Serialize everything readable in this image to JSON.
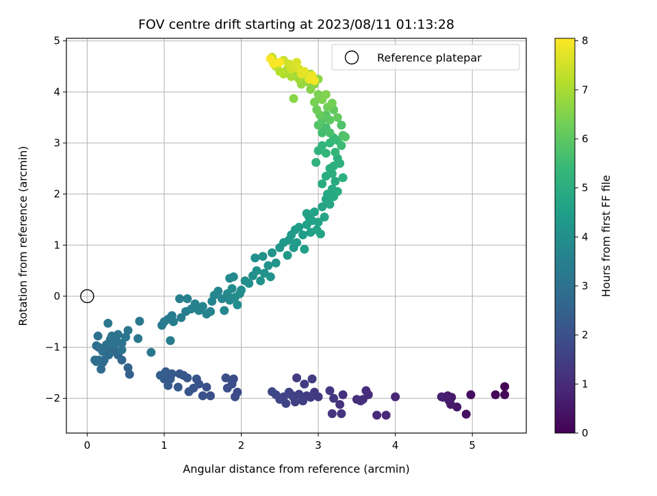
{
  "chart_data": {
    "type": "scatter",
    "title": "FOV centre drift starting at 2023/08/11 01:13:28",
    "xlabel": "Angular distance from reference (arcmin)",
    "ylabel": "Rotation from reference (arcmin)",
    "xlim": [
      -0.27,
      5.7
    ],
    "ylim": [
      -2.68,
      5.05
    ],
    "xticks": [
      0,
      1,
      2,
      3,
      4,
      5
    ],
    "yticks": [
      -2,
      -1,
      0,
      1,
      2,
      3,
      4,
      5
    ],
    "grid": true,
    "legend": {
      "position": "top-right",
      "entries": [
        "Reference platepar"
      ]
    },
    "reference_point": {
      "x": 0,
      "y": 0
    },
    "colorbar": {
      "label": "Hours from first FF file",
      "range": [
        0,
        8.05
      ],
      "ticks": [
        0,
        1,
        2,
        3,
        4,
        5,
        6,
        7,
        8
      ],
      "colormap": "viridis",
      "colormap_stops": [
        "#440154",
        "#482878",
        "#3e4989",
        "#31688e",
        "#26828e",
        "#1f9e89",
        "#35b779",
        "#6ece58",
        "#b5de2b",
        "#fde725"
      ]
    },
    "series_points": [
      [
        5.42,
        -1.77,
        0.05
      ],
      [
        5.42,
        -1.93,
        0.1
      ],
      [
        5.3,
        -1.93,
        0.15
      ],
      [
        4.98,
        -1.93,
        0.3
      ],
      [
        4.92,
        -2.31,
        0.35
      ],
      [
        4.8,
        -2.17,
        0.45
      ],
      [
        4.73,
        -1.98,
        0.55
      ],
      [
        4.7,
        -2.05,
        0.6
      ],
      [
        4.72,
        -2.12,
        0.6
      ],
      [
        4.62,
        -1.98,
        0.7
      ],
      [
        4.6,
        -1.97,
        0.75
      ],
      [
        4.68,
        -1.95,
        0.65
      ],
      [
        4.0,
        -1.97,
        0.85
      ],
      [
        3.88,
        -2.33,
        0.9
      ],
      [
        3.76,
        -2.33,
        0.95
      ],
      [
        3.65,
        -1.93,
        1.0
      ],
      [
        3.62,
        -1.85,
        1.05
      ],
      [
        3.58,
        -2.02,
        1.05
      ],
      [
        3.55,
        -2.05,
        1.1
      ],
      [
        3.5,
        -2.02,
        1.1
      ],
      [
        3.32,
        -1.93,
        1.15
      ],
      [
        3.3,
        -2.3,
        1.2
      ],
      [
        3.28,
        -2.12,
        1.2
      ],
      [
        3.18,
        -2.3,
        1.25
      ],
      [
        3.2,
        -2.0,
        1.25
      ],
      [
        3.15,
        -1.85,
        1.3
      ],
      [
        3.0,
        -1.97,
        1.35
      ],
      [
        2.95,
        -1.88,
        1.35
      ],
      [
        2.92,
        -1.62,
        1.4
      ],
      [
        2.9,
        -1.98,
        1.4
      ],
      [
        2.85,
        -1.95,
        1.45
      ],
      [
        2.82,
        -1.72,
        1.45
      ],
      [
        2.8,
        -2.05,
        1.5
      ],
      [
        2.75,
        -1.92,
        1.5
      ],
      [
        2.7,
        -2.07,
        1.55
      ],
      [
        2.68,
        -1.98,
        1.55
      ],
      [
        2.65,
        -1.93,
        1.6
      ],
      [
        2.62,
        -1.88,
        1.6
      ],
      [
        2.58,
        -2.1,
        1.65
      ],
      [
        2.55,
        -1.97,
        1.65
      ],
      [
        2.5,
        -2.02,
        1.7
      ],
      [
        2.45,
        -1.93,
        1.7
      ],
      [
        2.4,
        -1.87,
        1.75
      ],
      [
        2.72,
        -1.6,
        1.42
      ],
      [
        1.95,
        -1.88,
        1.8
      ],
      [
        1.92,
        -1.97,
        1.85
      ],
      [
        1.9,
        -1.62,
        1.85
      ],
      [
        1.88,
        -1.72,
        1.9
      ],
      [
        1.82,
        -1.8,
        1.9
      ],
      [
        1.8,
        -1.6,
        1.95
      ],
      [
        1.6,
        -1.95,
        2.0
      ],
      [
        1.55,
        -1.78,
        2.0
      ],
      [
        1.5,
        -1.95,
        2.05
      ],
      [
        1.45,
        -1.72,
        2.05
      ],
      [
        1.42,
        -1.62,
        2.1
      ],
      [
        1.38,
        -1.8,
        2.1
      ],
      [
        1.32,
        -1.87,
        2.15
      ],
      [
        1.3,
        -1.6,
        2.15
      ],
      [
        1.25,
        -1.55,
        2.2
      ],
      [
        1.2,
        -1.52,
        2.2
      ],
      [
        1.18,
        -1.78,
        2.25
      ],
      [
        1.1,
        -1.52,
        2.25
      ],
      [
        1.08,
        -1.62,
        2.3
      ],
      [
        1.05,
        -1.75,
        2.3
      ],
      [
        1.02,
        -1.48,
        2.35
      ],
      [
        1.0,
        -1.62,
        2.35
      ],
      [
        0.95,
        -1.55,
        2.4
      ],
      [
        0.55,
        -1.53,
        2.5
      ],
      [
        0.53,
        -1.4,
        2.55
      ],
      [
        0.45,
        -1.25,
        2.6
      ],
      [
        0.4,
        -1.15,
        2.65
      ],
      [
        0.35,
        -1.05,
        2.7
      ],
      [
        0.3,
        -1.1,
        2.7
      ],
      [
        0.25,
        -1.05,
        2.75
      ],
      [
        0.22,
        -1.25,
        2.75
      ],
      [
        0.2,
        -1.3,
        2.8
      ],
      [
        0.18,
        -1.43,
        2.8
      ],
      [
        0.15,
        -1.25,
        2.85
      ],
      [
        0.12,
        -1.28,
        2.85
      ],
      [
        0.1,
        -1.25,
        2.9
      ],
      [
        0.12,
        -0.97,
        2.9
      ],
      [
        0.15,
        -1.0,
        2.95
      ],
      [
        0.2,
        -1.08,
        2.95
      ],
      [
        0.25,
        -0.95,
        3.0
      ],
      [
        0.3,
        -0.85,
        3.0
      ],
      [
        0.32,
        -0.78,
        3.05
      ],
      [
        0.38,
        -0.88,
        3.05
      ],
      [
        0.4,
        -0.75,
        3.1
      ],
      [
        0.45,
        -0.92,
        3.1
      ],
      [
        0.5,
        -0.8,
        3.15
      ],
      [
        0.53,
        -0.67,
        3.15
      ],
      [
        0.45,
        -1.05,
        3.05
      ],
      [
        0.35,
        -0.95,
        2.98
      ],
      [
        0.28,
        -1.15,
        2.85
      ],
      [
        0.14,
        -0.78,
        2.95
      ],
      [
        0.27,
        -0.53,
        3.2
      ],
      [
        0.66,
        -0.83,
        3.2
      ],
      [
        0.68,
        -0.49,
        3.25
      ],
      [
        0.83,
        -1.1,
        3.25
      ],
      [
        0.97,
        -0.57,
        3.3
      ],
      [
        1.0,
        -0.5,
        3.3
      ],
      [
        1.05,
        -0.45,
        3.35
      ],
      [
        1.1,
        -0.38,
        3.35
      ],
      [
        1.12,
        -0.5,
        3.4
      ],
      [
        1.08,
        -0.87,
        3.38
      ],
      [
        1.2,
        -0.05,
        3.4
      ],
      [
        1.22,
        -0.42,
        3.45
      ],
      [
        1.28,
        -0.3,
        3.45
      ],
      [
        1.3,
        -0.05,
        3.5
      ],
      [
        1.35,
        -0.25,
        3.5
      ],
      [
        1.4,
        -0.15,
        3.55
      ],
      [
        1.45,
        -0.28,
        3.55
      ],
      [
        1.5,
        -0.2,
        3.6
      ],
      [
        1.55,
        -0.35,
        3.6
      ],
      [
        1.6,
        -0.3,
        3.65
      ],
      [
        1.62,
        -0.1,
        3.65
      ],
      [
        1.65,
        0.02,
        3.7
      ],
      [
        1.7,
        0.1,
        3.7
      ],
      [
        1.75,
        -0.05,
        3.75
      ],
      [
        1.78,
        -0.28,
        3.75
      ],
      [
        1.82,
        0.05,
        3.8
      ],
      [
        1.85,
        -0.08,
        3.8
      ],
      [
        1.88,
        0.15,
        3.85
      ],
      [
        1.92,
        -0.02,
        3.85
      ],
      [
        1.95,
        -0.17,
        3.9
      ],
      [
        1.98,
        0.05,
        3.9
      ],
      [
        2.0,
        0.12,
        3.95
      ],
      [
        2.05,
        0.3,
        3.95
      ],
      [
        2.1,
        0.25,
        4.0
      ],
      [
        2.15,
        0.4,
        4.0
      ],
      [
        1.85,
        0.35,
        3.82
      ],
      [
        1.9,
        0.38,
        3.86
      ],
      [
        2.18,
        0.75,
        4.05
      ],
      [
        2.2,
        0.5,
        4.05
      ],
      [
        2.25,
        0.3,
        4.1
      ],
      [
        2.3,
        0.45,
        4.1
      ],
      [
        2.35,
        0.6,
        4.15
      ],
      [
        2.28,
        0.78,
        4.1
      ],
      [
        2.4,
        0.85,
        4.2
      ],
      [
        2.45,
        0.65,
        4.2
      ],
      [
        2.5,
        0.95,
        4.25
      ],
      [
        2.55,
        1.05,
        4.25
      ],
      [
        2.6,
        0.8,
        4.3
      ],
      [
        2.38,
        0.38,
        4.15
      ],
      [
        2.62,
        1.1,
        4.3
      ],
      [
        2.65,
        1.2,
        4.35
      ],
      [
        2.68,
        0.95,
        4.35
      ],
      [
        2.7,
        1.3,
        4.4
      ],
      [
        2.72,
        1.05,
        4.4
      ],
      [
        2.75,
        1.35,
        4.45
      ],
      [
        2.8,
        1.2,
        4.45
      ],
      [
        2.82,
        0.92,
        4.5
      ],
      [
        2.85,
        1.4,
        4.5
      ],
      [
        2.88,
        1.55,
        4.55
      ],
      [
        2.9,
        1.25,
        4.55
      ],
      [
        2.92,
        1.48,
        4.6
      ],
      [
        2.95,
        1.65,
        4.6
      ],
      [
        2.98,
        1.3,
        4.65
      ],
      [
        3.0,
        1.45,
        4.65
      ],
      [
        3.05,
        1.75,
        4.7
      ],
      [
        3.08,
        1.55,
        4.7
      ],
      [
        3.03,
        1.22,
        4.68
      ],
      [
        2.85,
        1.62,
        4.58
      ],
      [
        3.1,
        1.9,
        4.75
      ],
      [
        3.12,
        2.0,
        4.8
      ],
      [
        3.15,
        1.8,
        4.8
      ],
      [
        3.18,
        2.1,
        4.85
      ],
      [
        3.2,
        1.95,
        4.85
      ],
      [
        3.22,
        2.25,
        4.9
      ],
      [
        3.25,
        2.05,
        4.9
      ],
      [
        3.18,
        2.4,
        5.0
      ],
      [
        3.2,
        2.55,
        5.05
      ],
      [
        3.25,
        2.7,
        5.1
      ],
      [
        3.05,
        2.2,
        4.95
      ],
      [
        3.1,
        2.35,
        5.0
      ],
      [
        3.15,
        2.5,
        5.05
      ],
      [
        3.28,
        2.6,
        5.1
      ],
      [
        3.32,
        2.32,
        5.1
      ],
      [
        2.97,
        2.62,
        5.15
      ],
      [
        3.0,
        2.85,
        5.2
      ],
      [
        3.05,
        2.95,
        5.25
      ],
      [
        3.1,
        2.8,
        5.3
      ],
      [
        3.15,
        3.0,
        5.35
      ],
      [
        3.2,
        3.1,
        5.4
      ],
      [
        3.25,
        3.05,
        5.45
      ],
      [
        3.3,
        2.95,
        5.5
      ],
      [
        3.22,
        2.82,
        5.3
      ],
      [
        3.05,
        3.2,
        5.6
      ],
      [
        3.1,
        3.3,
        5.65
      ],
      [
        3.15,
        3.2,
        5.7
      ],
      [
        3.3,
        3.35,
        5.75
      ],
      [
        3.32,
        3.15,
        5.8
      ],
      [
        3.35,
        3.12,
        5.8
      ],
      [
        3.0,
        3.35,
        5.85
      ],
      [
        3.05,
        3.45,
        5.9
      ],
      [
        3.1,
        3.55,
        5.95
      ],
      [
        3.15,
        3.45,
        6.0
      ],
      [
        3.2,
        3.65,
        6.05
      ],
      [
        3.25,
        3.5,
        6.1
      ],
      [
        3.02,
        3.55,
        6.15
      ],
      [
        2.98,
        3.65,
        6.2
      ],
      [
        3.12,
        3.7,
        6.25
      ],
      [
        3.18,
        3.78,
        6.3
      ],
      [
        2.95,
        3.8,
        6.35
      ],
      [
        3.0,
        3.95,
        6.4
      ],
      [
        3.05,
        3.85,
        6.45
      ],
      [
        3.1,
        3.95,
        6.5
      ],
      [
        2.9,
        4.05,
        6.55
      ],
      [
        2.95,
        4.15,
        6.6
      ],
      [
        3.0,
        4.25,
        6.65
      ],
      [
        2.85,
        4.2,
        6.7
      ],
      [
        2.78,
        4.15,
        6.75
      ],
      [
        2.82,
        4.3,
        6.8
      ],
      [
        2.9,
        4.35,
        6.85
      ],
      [
        2.75,
        4.25,
        6.9
      ],
      [
        2.7,
        4.4,
        6.95
      ],
      [
        2.68,
        3.87,
        6.6
      ],
      [
        2.65,
        4.3,
        7.0
      ],
      [
        2.6,
        4.45,
        7.05
      ],
      [
        2.55,
        4.35,
        7.1
      ],
      [
        2.5,
        4.4,
        7.15
      ],
      [
        2.45,
        4.5,
        7.2
      ],
      [
        2.42,
        4.6,
        7.25
      ],
      [
        2.4,
        4.68,
        7.3
      ],
      [
        2.48,
        4.55,
        7.35
      ],
      [
        2.55,
        4.62,
        7.4
      ],
      [
        2.62,
        4.55,
        7.45
      ],
      [
        2.65,
        4.45,
        7.5
      ],
      [
        2.68,
        4.52,
        7.55
      ],
      [
        2.72,
        4.58,
        7.6
      ],
      [
        2.75,
        4.45,
        7.65
      ],
      [
        2.78,
        4.35,
        7.7
      ],
      [
        2.82,
        4.4,
        7.75
      ],
      [
        2.88,
        4.25,
        7.8
      ],
      [
        2.92,
        4.32,
        7.85
      ],
      [
        2.95,
        4.22,
        7.9
      ],
      [
        2.42,
        4.55,
        7.95
      ],
      [
        2.38,
        4.65,
        8.0
      ],
      [
        2.5,
        4.58,
        8.02
      ]
    ]
  }
}
